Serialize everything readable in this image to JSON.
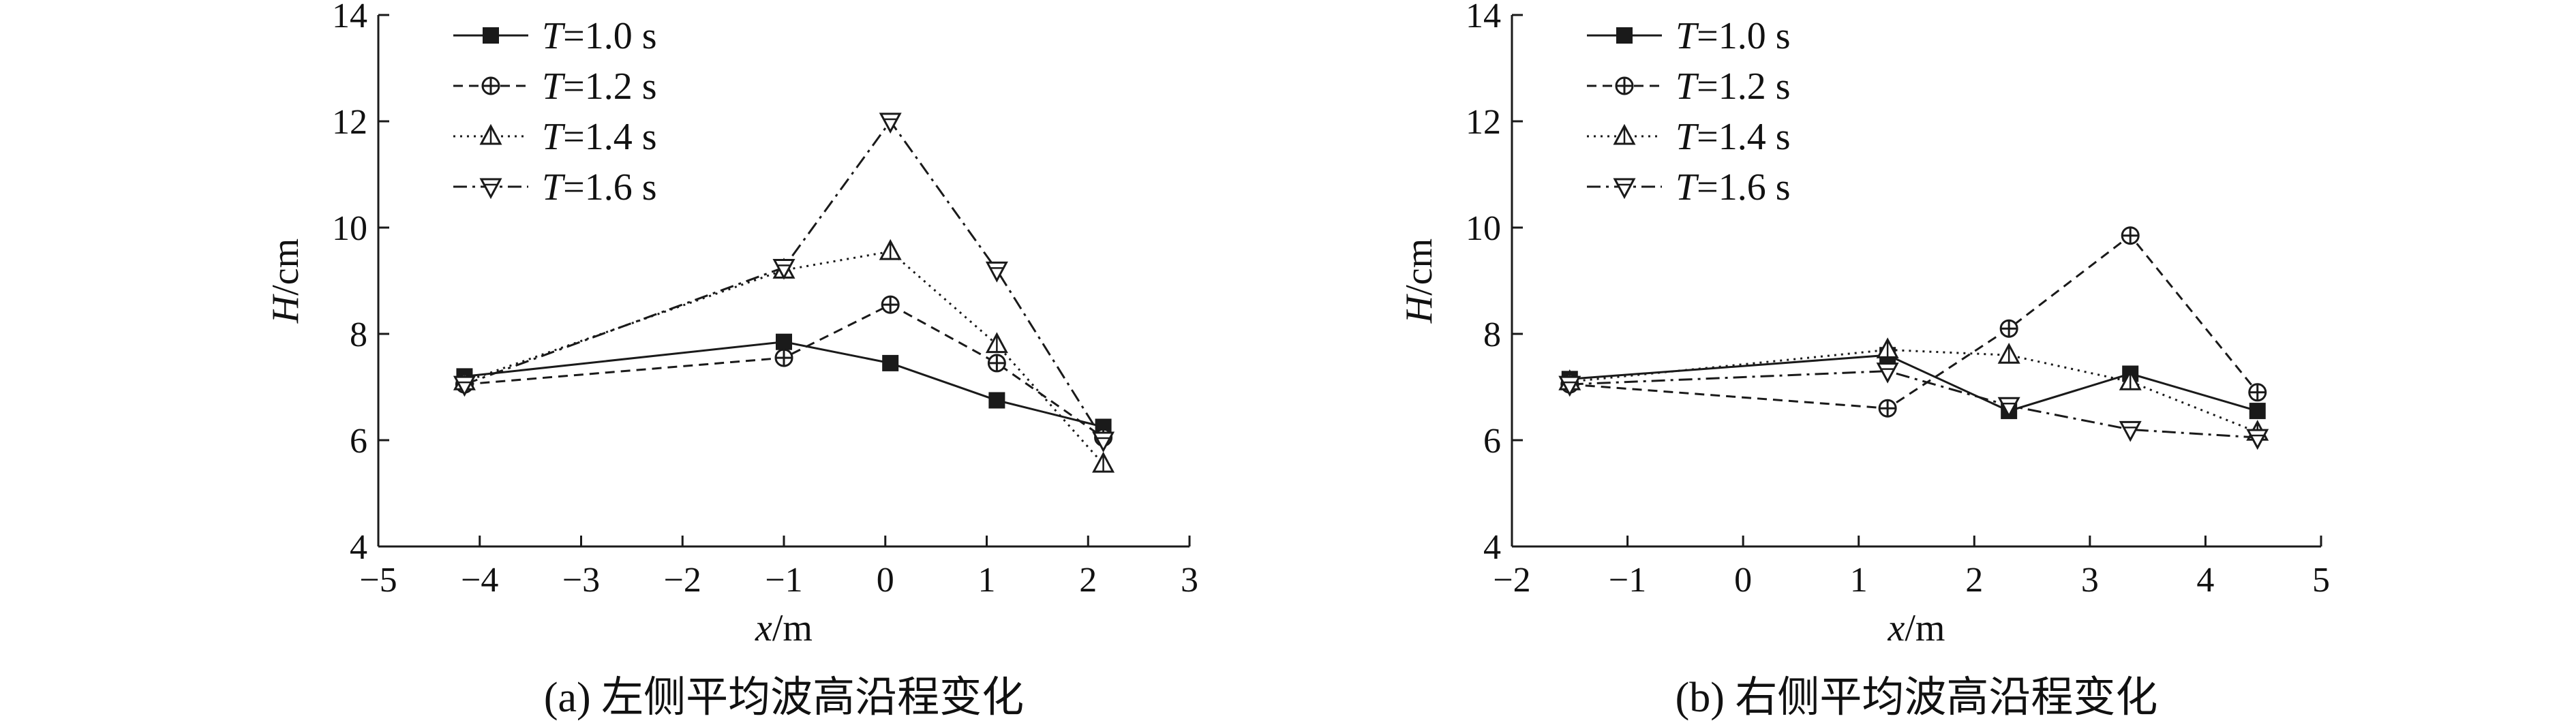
{
  "chart_data": [
    {
      "type": "line",
      "title": "",
      "caption": "(a) 左侧平均波高沿程变化",
      "xlabel_var": "x",
      "xlabel_unit": "/m",
      "ylabel_var": "H",
      "ylabel_unit": "/cm",
      "xlim": [
        -5,
        3
      ],
      "ylim": [
        4,
        14
      ],
      "xticks": [
        -5,
        -4,
        -3,
        -2,
        -1,
        0,
        1,
        2,
        3
      ],
      "yticks": [
        4,
        6,
        8,
        10,
        12,
        14
      ],
      "xtick_labels": [
        "−5",
        "−4",
        "−3",
        "−2",
        "−1",
        "0",
        "1",
        "2",
        "3"
      ],
      "ytick_labels": [
        "4",
        "6",
        "8",
        "10",
        "12",
        "14"
      ],
      "legend_position": "top-left",
      "x": [
        -4.15,
        -1.0,
        0.05,
        1.1,
        2.15
      ],
      "series": [
        {
          "name": "=1.0 s",
          "var": "T",
          "values": [
            7.2,
            7.85,
            7.45,
            6.75,
            6.25
          ],
          "marker": "square",
          "dash": "solid"
        },
        {
          "name": "=1.2 s",
          "var": "T",
          "values": [
            7.05,
            7.55,
            8.55,
            7.45,
            6.05
          ],
          "marker": "circle-plus",
          "dash": "dashed"
        },
        {
          "name": "=1.4 s",
          "var": "T",
          "values": [
            7.1,
            9.2,
            9.55,
            7.8,
            5.55
          ],
          "marker": "triangle-up",
          "dash": "dotted"
        },
        {
          "name": "=1.6 s",
          "var": "T",
          "values": [
            7.05,
            9.25,
            12.0,
            9.2,
            6.0
          ],
          "marker": "triangle-down",
          "dash": "dashdot"
        }
      ]
    },
    {
      "type": "line",
      "title": "",
      "caption": "(b) 右侧平均波高沿程变化",
      "xlabel_var": "x",
      "xlabel_unit": "/m",
      "ylabel_var": "H",
      "ylabel_unit": "/cm",
      "xlim": [
        -2,
        5
      ],
      "ylim": [
        4,
        14
      ],
      "xticks": [
        -2,
        -1,
        0,
        1,
        2,
        3,
        4,
        5
      ],
      "yticks": [
        4,
        6,
        8,
        10,
        12,
        14
      ],
      "xtick_labels": [
        "−2",
        "−1",
        "0",
        "1",
        "2",
        "3",
        "4",
        "5"
      ],
      "ytick_labels": [
        "4",
        "6",
        "8",
        "10",
        "12",
        "14"
      ],
      "legend_position": "top-left",
      "x": [
        -1.5,
        1.25,
        2.3,
        3.35,
        4.45
      ],
      "series": [
        {
          "name": "=1.0 s",
          "var": "T",
          "values": [
            7.15,
            7.6,
            6.55,
            7.25,
            6.55
          ],
          "marker": "square",
          "dash": "solid"
        },
        {
          "name": "=1.2 s",
          "var": "T",
          "values": [
            7.05,
            6.6,
            8.1,
            9.85,
            6.9
          ],
          "marker": "circle-plus",
          "dash": "dashed"
        },
        {
          "name": "=1.4 s",
          "var": "T",
          "values": [
            7.1,
            7.7,
            7.6,
            7.1,
            6.15
          ],
          "marker": "triangle-up",
          "dash": "dotted"
        },
        {
          "name": "=1.6 s",
          "var": "T",
          "values": [
            7.05,
            7.3,
            6.65,
            6.2,
            6.05
          ],
          "marker": "triangle-down",
          "dash": "dashdot"
        }
      ]
    }
  ]
}
